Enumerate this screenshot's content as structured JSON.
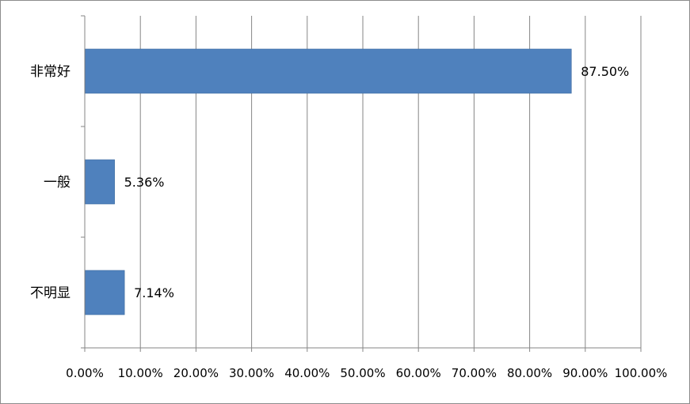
{
  "chart_data": {
    "type": "bar",
    "orientation": "horizontal",
    "categories": [
      "非常好",
      "一般",
      "不明显"
    ],
    "values": [
      87.5,
      5.36,
      7.14
    ],
    "data_labels": [
      "87.50%",
      "5.36%",
      "7.14%"
    ],
    "xlim": [
      0,
      100
    ],
    "x_ticks": [
      0,
      10,
      20,
      30,
      40,
      50,
      60,
      70,
      80,
      90,
      100
    ],
    "x_tick_labels": [
      "0.00%",
      "10.00%",
      "20.00%",
      "30.00%",
      "40.00%",
      "50.00%",
      "60.00%",
      "70.00%",
      "80.00%",
      "90.00%",
      "100.00%"
    ],
    "title": "",
    "xlabel": "",
    "ylabel": "",
    "grid": "vertical",
    "legend": "none",
    "bar_color": "#4f81bd",
    "grid_color": "#868686"
  }
}
